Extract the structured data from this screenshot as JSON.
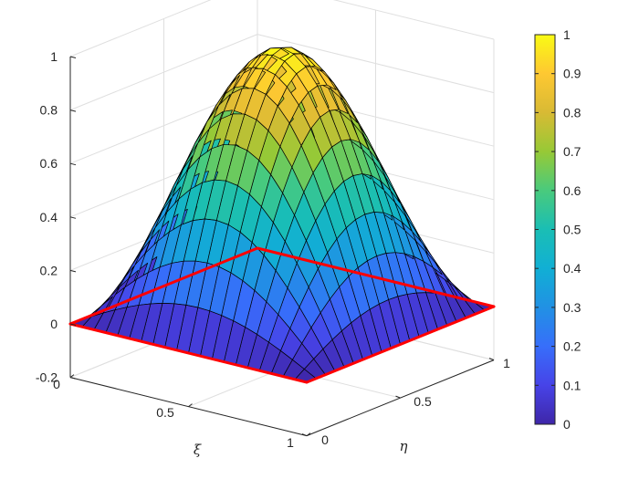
{
  "chart_data": {
    "type": "surface3d",
    "function": "sin(pi*xi) * sin(pi*eta)",
    "grid": {
      "xi_points": 21,
      "eta_points": 21
    },
    "xlabel": "ξ",
    "ylabel": "η",
    "zlabel": "",
    "xlim": [
      0,
      1
    ],
    "ylim": [
      0,
      1
    ],
    "zlim": [
      -0.2,
      1
    ],
    "x_ticks": [
      "0",
      "0.5",
      "1"
    ],
    "y_ticks": [
      "0",
      "0.5",
      "1"
    ],
    "z_ticks": [
      "-0.2",
      "0",
      "0.2",
      "0.4",
      "0.6",
      "0.8",
      "1"
    ],
    "z_tick_values": [
      -0.2,
      0,
      0.2,
      0.4,
      0.6,
      0.8,
      1
    ],
    "boundary_color": "#ff0000",
    "grid_on": true,
    "colormap": "parula",
    "colorbar": {
      "min": 0,
      "max": 1,
      "tick_values": [
        0,
        0.1,
        0.2,
        0.3,
        0.4,
        0.5,
        0.6,
        0.7,
        0.8,
        0.9,
        1
      ],
      "tick_labels": [
        "0",
        "0.1",
        "0.2",
        "0.3",
        "0.4",
        "0.5",
        "0.6",
        "0.7",
        "0.8",
        "0.9",
        "1"
      ]
    }
  }
}
